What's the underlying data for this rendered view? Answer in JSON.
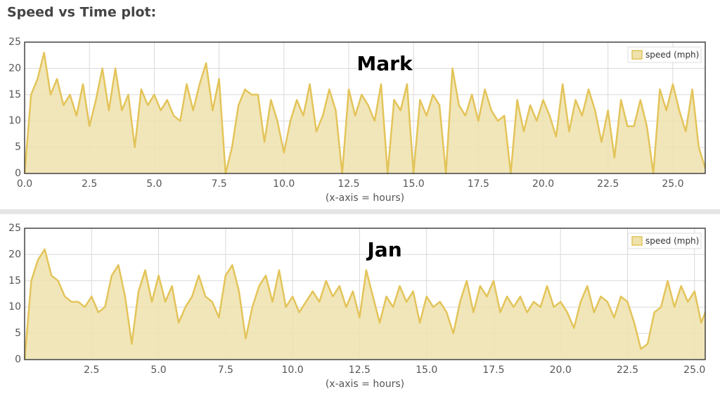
{
  "header": {
    "title": "Speed vs Time plot:"
  },
  "chart_data": [
    {
      "type": "area",
      "title": "Mark",
      "x_label": "(x-axis = hours)",
      "grid": true,
      "legend": "upper right",
      "x": [
        0,
        0.25,
        0.5,
        0.75,
        1,
        1.25,
        1.5,
        1.75,
        2,
        2.25,
        2.5,
        2.75,
        3,
        3.25,
        3.5,
        3.75,
        4,
        4.25,
        4.5,
        4.75,
        5,
        5.25,
        5.5,
        5.75,
        6,
        6.25,
        6.5,
        6.75,
        7,
        7.25,
        7.5,
        7.75,
        8,
        8.25,
        8.5,
        8.75,
        9,
        9.25,
        9.5,
        9.75,
        10,
        10.25,
        10.5,
        10.75,
        11,
        11.25,
        11.5,
        11.75,
        12,
        12.25,
        12.5,
        12.75,
        13,
        13.25,
        13.5,
        13.75,
        14,
        14.25,
        14.5,
        14.75,
        15,
        15.25,
        15.5,
        15.75,
        16,
        16.25,
        16.5,
        16.75,
        17,
        17.25,
        17.5,
        17.75,
        18,
        18.25,
        18.5,
        18.75,
        19,
        19.25,
        19.5,
        19.75,
        20,
        20.25,
        20.5,
        20.75,
        21,
        21.25,
        21.5,
        21.75,
        22,
        22.25,
        22.5,
        22.75,
        23,
        23.25,
        23.5,
        23.75,
        24,
        24.25,
        24.5,
        24.75,
        25,
        25.25,
        25.5,
        25.75,
        26,
        26.25
      ],
      "series": [
        {
          "name": "speed (mph)",
          "color": "#e3c45a",
          "fill": "#efe2ad",
          "values": [
            0,
            15,
            18,
            23,
            15,
            18,
            13,
            15,
            11,
            17,
            9,
            14,
            20,
            12,
            20,
            12,
            15,
            5,
            16,
            13,
            15,
            12,
            14,
            11,
            10,
            17,
            12,
            17,
            21,
            12,
            18,
            0,
            5,
            13,
            16,
            15,
            15,
            6,
            14,
            10,
            4,
            10,
            14,
            11,
            17,
            8,
            11,
            16,
            12,
            0,
            16,
            11,
            15,
            13,
            10,
            17,
            0,
            14,
            12,
            17,
            0,
            14,
            11,
            15,
            13,
            0,
            20,
            13,
            11,
            15,
            10,
            16,
            12,
            10,
            11,
            0,
            14,
            8,
            13,
            10,
            14,
            11,
            7,
            17,
            8,
            14,
            11,
            16,
            12,
            6,
            12,
            3,
            14,
            9,
            9,
            14,
            9,
            0,
            16,
            12,
            17,
            12,
            8,
            16,
            5,
            1
          ]
        }
      ],
      "xlim": [
        0,
        26.25
      ],
      "ylim": [
        0,
        25
      ],
      "xticks": [
        {
          "value": 0,
          "label": "0.0"
        },
        2.5,
        {
          "value": 5,
          "label": "5.0"
        },
        7.5,
        {
          "value": 10,
          "label": "10.0"
        },
        12.5,
        {
          "value": 15,
          "label": "15.0"
        },
        17.5,
        {
          "value": 20,
          "label": "20.0"
        },
        22.5,
        {
          "value": 25,
          "label": "25.0"
        }
      ],
      "yticks": [
        0,
        5,
        10,
        15,
        20,
        25
      ]
    },
    {
      "type": "area",
      "title": "Jan",
      "x_label": "(x-axis = hours)",
      "grid": true,
      "legend": "upper right",
      "x": [
        0,
        0.25,
        0.5,
        0.75,
        1,
        1.25,
        1.5,
        1.75,
        2,
        2.25,
        2.5,
        2.75,
        3,
        3.25,
        3.5,
        3.75,
        4,
        4.25,
        4.5,
        4.75,
        5,
        5.25,
        5.5,
        5.75,
        6,
        6.25,
        6.5,
        6.75,
        7,
        7.25,
        7.5,
        7.75,
        8,
        8.25,
        8.5,
        8.75,
        9,
        9.25,
        9.5,
        9.75,
        10,
        10.25,
        10.5,
        10.75,
        11,
        11.25,
        11.5,
        11.75,
        12,
        12.25,
        12.5,
        12.75,
        13,
        13.25,
        13.5,
        13.75,
        14,
        14.25,
        14.5,
        14.75,
        15,
        15.25,
        15.5,
        15.75,
        16,
        16.25,
        16.5,
        16.75,
        17,
        17.25,
        17.5,
        17.75,
        18,
        18.25,
        18.5,
        18.75,
        19,
        19.25,
        19.5,
        19.75,
        20,
        20.25,
        20.5,
        20.75,
        21,
        21.25,
        21.5,
        21.75,
        22,
        22.25,
        22.5,
        22.75,
        23,
        23.25,
        23.5,
        23.75,
        24,
        24.25,
        24.5,
        24.75,
        25,
        25.25,
        25.4
      ],
      "series": [
        {
          "name": "speed (mph)",
          "color": "#e3c45a",
          "fill": "#efe2ad",
          "values": [
            0,
            15,
            19,
            21,
            16,
            15,
            12,
            11,
            11,
            10,
            12,
            9,
            10,
            16,
            18,
            12,
            3,
            13,
            17,
            11,
            16,
            11,
            14,
            7,
            10,
            12,
            16,
            12,
            11,
            8,
            16,
            18,
            13,
            4,
            10,
            14,
            16,
            11,
            17,
            10,
            12,
            9,
            11,
            13,
            11,
            15,
            12,
            14,
            10,
            13,
            8,
            17,
            12,
            7,
            12,
            10,
            14,
            11,
            13,
            7,
            12,
            10,
            11,
            9,
            5,
            11,
            15,
            9,
            14,
            12,
            15,
            9,
            12,
            10,
            12,
            9,
            11,
            10,
            14,
            10,
            11,
            9,
            6,
            11,
            14,
            9,
            12,
            11,
            8,
            12,
            11,
            7,
            2,
            3,
            9,
            10,
            15,
            10,
            14,
            11,
            13,
            7,
            9
          ]
        }
      ],
      "xlim": [
        0,
        25.4
      ],
      "ylim": [
        0,
        25
      ],
      "xticks": [
        2.5,
        {
          "value": 5,
          "label": "5.0"
        },
        7.5,
        {
          "value": 10,
          "label": "10.0"
        },
        12.5,
        {
          "value": 15,
          "label": "15.0"
        },
        17.5,
        {
          "value": 20,
          "label": "20.0"
        },
        22.5,
        {
          "value": 25,
          "label": "25.0"
        }
      ],
      "yticks": [
        0,
        5,
        10,
        15,
        20,
        25
      ]
    }
  ]
}
